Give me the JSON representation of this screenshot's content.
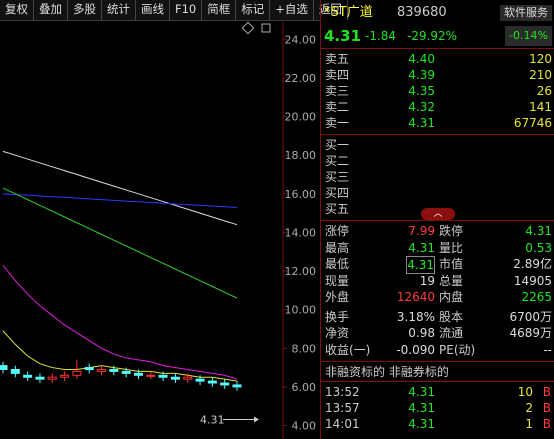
{
  "toolbar": {
    "items": [
      "复权",
      "叠加",
      "多股",
      "统计",
      "画线",
      "F10",
      "简框",
      "标记",
      "+自选",
      "返回"
    ]
  },
  "quote": {
    "name": "*ST广道",
    "code": "839680",
    "sector": "软件服务",
    "price": "4.31",
    "change": "-1.84",
    "change_pct": "-29.92%",
    "sector_change": "-0.14%"
  },
  "sell_orders": [
    [
      "卖五",
      "4.40",
      "120"
    ],
    [
      "卖四",
      "4.39",
      "210"
    ],
    [
      "卖三",
      "4.35",
      "26"
    ],
    [
      "卖二",
      "4.32",
      "141"
    ],
    [
      "卖一",
      "4.31",
      "67746"
    ]
  ],
  "buy_orders": [
    "买一",
    "买二",
    "买三",
    "买四",
    "买五"
  ],
  "stats": {
    "rows": [
      [
        "涨停",
        "7.99",
        "跌停",
        "4.31"
      ],
      [
        "最高",
        "4.31",
        "量比",
        "0.53"
      ],
      [
        "最低",
        "4.31",
        "市值",
        "2.89亿"
      ],
      [
        "现量",
        "19",
        "总量",
        "14905"
      ],
      [
        "外盘",
        "12640",
        "内盘",
        "2265"
      ],
      [
        "换手",
        "3.18%",
        "股本",
        "6700万"
      ],
      [
        "净资",
        "0.98",
        "流通",
        "4689万"
      ],
      [
        "收益(一)",
        "-0.090",
        "PE(动)",
        "--"
      ]
    ]
  },
  "margin_note": "非融资标的 非融券标的",
  "trades": [
    [
      "13:52",
      "4.31",
      "10",
      "B"
    ],
    [
      "13:57",
      "4.31",
      "2",
      "B"
    ],
    [
      "14:01",
      "4.31",
      "1",
      "B"
    ]
  ],
  "chart_data": {
    "type": "candlestick",
    "ylim": [
      3.3,
      24.9
    ],
    "yticks": [
      {
        "value": 4,
        "label": "4.00"
      },
      {
        "value": 6,
        "label": "6.00"
      },
      {
        "value": 8,
        "label": "8.00"
      },
      {
        "value": 10,
        "label": "10.00"
      },
      {
        "value": 12,
        "label": "12.00"
      },
      {
        "value": 14,
        "label": "14.00"
      },
      {
        "value": 16,
        "label": "16.00"
      },
      {
        "value": 18,
        "label": "18.00"
      },
      {
        "value": 20,
        "label": "20.00"
      },
      {
        "value": 22,
        "label": "22.00"
      },
      {
        "value": 24,
        "label": "24.00"
      }
    ],
    "open": [
      7.1,
      6.9,
      6.6,
      6.5,
      6.4,
      6.5,
      6.6,
      7.0,
      6.8,
      6.9,
      6.8,
      6.7,
      6.6,
      6.6,
      6.5,
      6.4,
      6.4,
      6.3,
      6.2,
      6.1
    ],
    "high": [
      7.3,
      7.1,
      6.8,
      6.7,
      6.7,
      6.8,
      7.4,
      7.2,
      7.1,
      7.1,
      7.0,
      6.9,
      6.8,
      6.8,
      6.7,
      6.7,
      6.6,
      6.5,
      6.4,
      6.3
    ],
    "low": [
      6.7,
      6.5,
      6.3,
      6.2,
      6.2,
      6.3,
      6.4,
      6.7,
      6.6,
      6.6,
      6.5,
      6.4,
      6.4,
      6.3,
      6.2,
      6.2,
      6.1,
      6.0,
      5.9,
      5.8
    ],
    "close": [
      6.9,
      6.7,
      6.5,
      6.4,
      6.5,
      6.6,
      6.8,
      6.9,
      6.9,
      6.8,
      6.7,
      6.6,
      6.6,
      6.5,
      6.4,
      6.5,
      6.3,
      6.2,
      6.1,
      6.0
    ],
    "up_color": "#ff3232",
    "down_color": "#54ffff",
    "series": [
      {
        "color": "#dcdcdc",
        "values": [
          18.2,
          18.0,
          17.8,
          17.6,
          17.4,
          17.2,
          17.0,
          16.8,
          16.6,
          16.4,
          16.2,
          16.0,
          15.8,
          15.6,
          15.4,
          15.2,
          15.0,
          14.8,
          14.6,
          14.4
        ]
      },
      {
        "color": "#2a3cff",
        "values": [
          16.0,
          15.96,
          15.93,
          15.89,
          15.85,
          15.82,
          15.78,
          15.74,
          15.7,
          15.66,
          15.62,
          15.59,
          15.55,
          15.51,
          15.47,
          15.44,
          15.4,
          15.37,
          15.33,
          15.3
        ]
      },
      {
        "color": "#2ed02e",
        "values": [
          16.3,
          16.0,
          15.7,
          15.4,
          15.1,
          14.8,
          14.5,
          14.2,
          13.9,
          13.6,
          13.3,
          13.0,
          12.7,
          12.4,
          12.1,
          11.8,
          11.5,
          11.2,
          10.9,
          10.6
        ]
      },
      {
        "color": "#e020e0",
        "values": [
          12.3,
          11.5,
          10.8,
          10.2,
          9.7,
          9.2,
          8.8,
          8.4,
          8.0,
          7.7,
          7.5,
          7.4,
          7.3,
          7.1,
          7.0,
          6.9,
          6.8,
          6.7,
          6.6,
          6.4
        ]
      },
      {
        "color": "#e6e632",
        "values": [
          8.9,
          8.2,
          7.6,
          7.2,
          7.0,
          6.9,
          6.9,
          7.0,
          7.1,
          7.0,
          6.9,
          6.8,
          6.8,
          6.7,
          6.7,
          6.6,
          6.5,
          6.5,
          6.4,
          6.3
        ]
      }
    ],
    "last_price": 4.31
  }
}
